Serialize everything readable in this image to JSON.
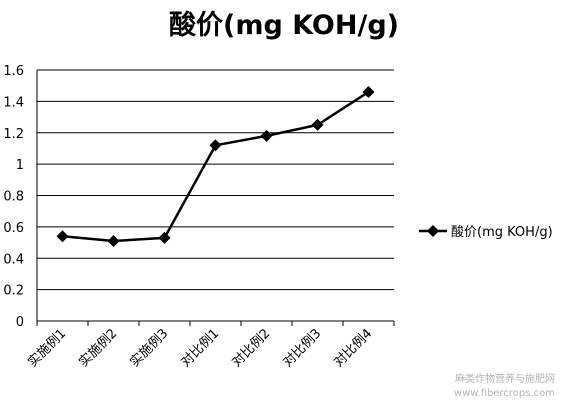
{
  "chart_data": {
    "type": "line",
    "title": "酸价(mg KOH/g)",
    "categories": [
      "实施例1",
      "实施例2",
      "实施例3",
      "对比例1",
      "对比例2",
      "对比例3",
      "对比例4"
    ],
    "series": [
      {
        "name": "酸价(mg KOH/g)",
        "values": [
          0.54,
          0.51,
          0.53,
          1.12,
          1.18,
          1.25,
          1.46
        ]
      }
    ],
    "yticks": [
      "0",
      "0.2",
      "0.4",
      "0.6",
      "0.8",
      "1",
      "1.2",
      "1.4",
      "1.6"
    ],
    "ylim": [
      0,
      1.6
    ],
    "grid": true,
    "legend_position": "right",
    "line_color": "#000000",
    "marker": "diamond"
  },
  "watermark": {
    "line1": "麻类作物营养与施肥网",
    "line2": "www.fibercrops.com"
  }
}
